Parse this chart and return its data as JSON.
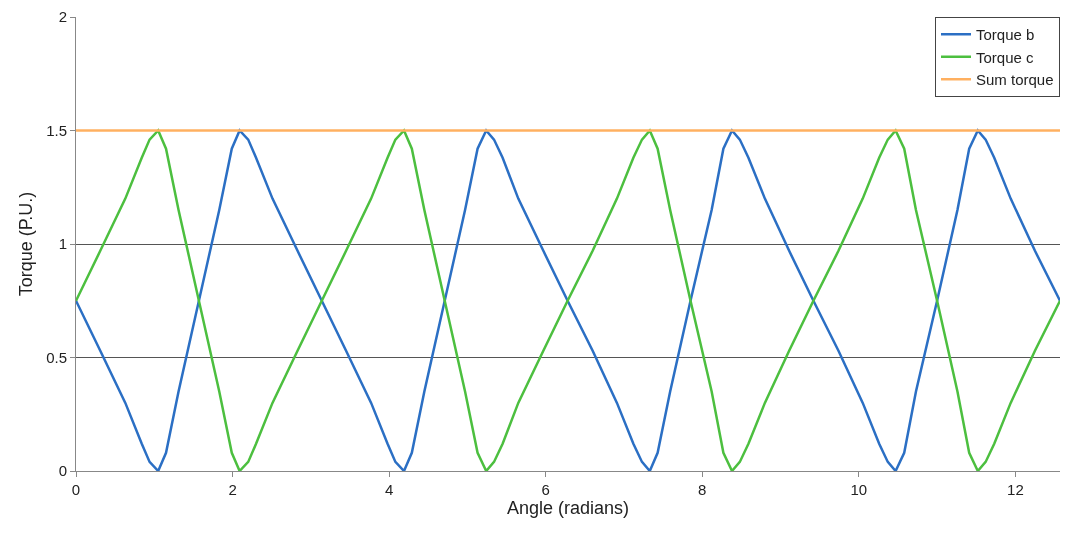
{
  "chart_data": {
    "type": "line",
    "xlabel": "Angle (radians)",
    "ylabel": "Torque (P.U.)",
    "xlim": [
      0,
      12.57
    ],
    "xticks": [
      0,
      2,
      4,
      6,
      8,
      10,
      12
    ],
    "ylim": [
      0,
      2
    ],
    "yticks": [
      0,
      0.5,
      1,
      1.5,
      2
    ],
    "grid": "y",
    "legend": "top right",
    "marker": "none",
    "line_style": "solid",
    "series": [
      {
        "name": "Torque b",
        "color": "#2b6fc4",
        "x": [
          0,
          0.31,
          0.63,
          0.84,
          0.94,
          1.05,
          1.15,
          1.31,
          1.57,
          1.83,
          1.99,
          2.09,
          2.2,
          2.3,
          2.51,
          2.83,
          3.14,
          3.45,
          3.77,
          3.98,
          4.08,
          4.19,
          4.29,
          4.45,
          4.71,
          4.97,
          5.13,
          5.24,
          5.34,
          5.45,
          5.65,
          5.97,
          6.28,
          6.6,
          6.91,
          7.12,
          7.23,
          7.33,
          7.43,
          7.59,
          7.85,
          8.12,
          8.27,
          8.38,
          8.48,
          8.59,
          8.8,
          9.11,
          9.42,
          9.74,
          10.05,
          10.26,
          10.37,
          10.47,
          10.58,
          10.73,
          11.0,
          11.26,
          11.41,
          11.52,
          11.62,
          11.73,
          11.94,
          12.25,
          12.57
        ],
        "values": [
          0.75,
          0.53,
          0.3,
          0.12,
          0.04,
          0,
          0.08,
          0.35,
          0.75,
          1.15,
          1.42,
          1.5,
          1.46,
          1.38,
          1.2,
          0.97,
          0.75,
          0.53,
          0.3,
          0.12,
          0.04,
          0,
          0.08,
          0.35,
          0.75,
          1.15,
          1.42,
          1.5,
          1.46,
          1.38,
          1.2,
          0.97,
          0.75,
          0.53,
          0.3,
          0.12,
          0.04,
          0,
          0.08,
          0.35,
          0.75,
          1.15,
          1.42,
          1.5,
          1.46,
          1.38,
          1.2,
          0.97,
          0.75,
          0.53,
          0.3,
          0.12,
          0.04,
          0,
          0.08,
          0.35,
          0.75,
          1.15,
          1.42,
          1.5,
          1.46,
          1.38,
          1.2,
          0.97,
          0.75
        ]
      },
      {
        "name": "Torque c",
        "color": "#4cbf3f",
        "x": [
          0,
          0.31,
          0.63,
          0.84,
          0.94,
          1.05,
          1.15,
          1.31,
          1.57,
          1.83,
          1.99,
          2.09,
          2.2,
          2.3,
          2.51,
          2.83,
          3.14,
          3.45,
          3.77,
          3.98,
          4.08,
          4.19,
          4.29,
          4.45,
          4.71,
          4.97,
          5.13,
          5.24,
          5.34,
          5.45,
          5.65,
          5.97,
          6.28,
          6.6,
          6.91,
          7.12,
          7.23,
          7.33,
          7.43,
          7.59,
          7.85,
          8.12,
          8.27,
          8.38,
          8.48,
          8.59,
          8.8,
          9.11,
          9.42,
          9.74,
          10.05,
          10.26,
          10.37,
          10.47,
          10.58,
          10.73,
          11.0,
          11.26,
          11.41,
          11.52,
          11.62,
          11.73,
          11.94,
          12.25,
          12.57
        ],
        "values": [
          0.75,
          0.97,
          1.2,
          1.38,
          1.46,
          1.5,
          1.42,
          1.15,
          0.75,
          0.35,
          0.08,
          0,
          0.04,
          0.12,
          0.3,
          0.53,
          0.75,
          0.97,
          1.2,
          1.38,
          1.46,
          1.5,
          1.42,
          1.15,
          0.75,
          0.35,
          0.08,
          0,
          0.04,
          0.12,
          0.3,
          0.53,
          0.75,
          0.97,
          1.2,
          1.38,
          1.46,
          1.5,
          1.42,
          1.15,
          0.75,
          0.35,
          0.08,
          0,
          0.04,
          0.12,
          0.3,
          0.53,
          0.75,
          0.97,
          1.2,
          1.38,
          1.46,
          1.5,
          1.42,
          1.15,
          0.75,
          0.35,
          0.08,
          0,
          0.04,
          0.12,
          0.3,
          0.53,
          0.75
        ]
      },
      {
        "name": "Sum torque",
        "color": "#ffb060",
        "x": [
          0,
          12.57
        ],
        "values": [
          1.5,
          1.5
        ]
      }
    ]
  }
}
